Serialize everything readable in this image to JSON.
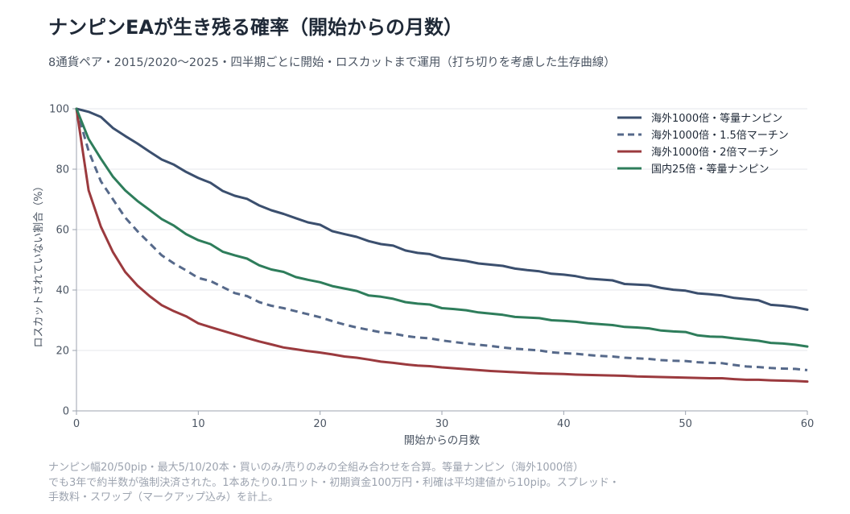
{
  "title": "ナンピンEAが生き残る確率（開始からの月数）",
  "subtitle": "8通貨ペア・2015/2020〜2025・四半期ごとに開始・ロスカットまで運用（打ち切りを考慮した生存曲線）",
  "notes": [
    "ナンピン幅20/50pip・最大5/10/20本・買いのみ/売りのみの全組み合わせを合算。等量ナンピン（海外1000倍）",
    "でも3年で約半数が強制決済された。1本あたり0.1ロット・初期資金100万円・利確は平均建値から10pip。スプレッド・",
    "手数料・スワップ（マークアップ込み）を計上。"
  ],
  "chart_data": {
    "type": "line",
    "xlabel": "開始からの月数",
    "ylabel": "ロスカットされていない割合（%）",
    "xlim": [
      0,
      60
    ],
    "ylim": [
      0,
      100
    ],
    "xticks": [
      0,
      10,
      20,
      30,
      40,
      50,
      60
    ],
    "yticks": [
      0,
      20,
      40,
      60,
      80,
      100
    ],
    "grid": "horizontal",
    "legend_position": "top-right",
    "series": [
      {
        "name": "海外1000倍・等量ナンピン",
        "color": "#3b4f6e",
        "dash": "solid",
        "x": [
          0,
          1,
          2,
          3,
          4,
          5,
          6,
          7,
          8,
          9,
          10,
          11,
          12,
          13,
          14,
          15,
          16,
          17,
          18,
          19,
          20,
          21,
          22,
          23,
          24,
          25,
          26,
          27,
          28,
          29,
          30,
          31,
          32,
          33,
          34,
          35,
          36,
          37,
          38,
          39,
          40,
          41,
          42,
          43,
          44,
          45,
          46,
          47,
          48,
          49,
          50,
          51,
          52,
          53,
          54,
          55,
          56,
          57,
          58,
          59,
          60
        ],
        "y": [
          100,
          99,
          97.3,
          93.6,
          91,
          88.5,
          85.8,
          83.2,
          81.5,
          79.1,
          77.1,
          75.5,
          72.8,
          71.2,
          70.2,
          68,
          66.4,
          65.2,
          63.8,
          62.4,
          61.6,
          59.5,
          58.5,
          57.6,
          56.2,
          55.2,
          54.7,
          53.1,
          52.3,
          51.9,
          50.6,
          50.1,
          49.6,
          48.8,
          48.4,
          48,
          47.1,
          46.6,
          46.2,
          45.4,
          45.1,
          44.6,
          43.8,
          43.5,
          43.2,
          42,
          41.8,
          41.6,
          40.7,
          40.1,
          39.8,
          38.9,
          38.6,
          38.2,
          37.4,
          37,
          36.6,
          35.1,
          34.8,
          34.3,
          33.5
        ]
      },
      {
        "name": "海外1000倍・1.5倍マーチン",
        "color": "#56698a",
        "dash": "dashed",
        "x": [
          0,
          1,
          2,
          3,
          4,
          5,
          6,
          7,
          8,
          9,
          10,
          11,
          12,
          13,
          14,
          15,
          16,
          17,
          18,
          19,
          20,
          21,
          22,
          23,
          24,
          25,
          26,
          27,
          28,
          29,
          30,
          31,
          32,
          33,
          34,
          35,
          36,
          37,
          38,
          39,
          40,
          41,
          42,
          43,
          44,
          45,
          46,
          47,
          48,
          49,
          50,
          51,
          52,
          53,
          54,
          55,
          56,
          57,
          58,
          59,
          60
        ],
        "y": [
          100,
          86,
          76,
          70,
          64,
          59.5,
          55.5,
          51.5,
          48.8,
          46.5,
          44,
          43,
          41,
          39,
          38,
          36,
          34.8,
          34,
          33,
          32,
          31,
          29.7,
          28.6,
          27.6,
          26.8,
          26,
          25.6,
          24.8,
          24.3,
          24,
          23.3,
          22.8,
          22.3,
          21.9,
          21.5,
          21,
          20.6,
          20.3,
          20,
          19.4,
          19.1,
          18.9,
          18.5,
          18.2,
          18,
          17.6,
          17.4,
          17.2,
          16.8,
          16.6,
          16.5,
          16.1,
          15.9,
          15.8,
          15.2,
          14.7,
          14.5,
          14.2,
          14,
          13.9,
          13.5
        ]
      },
      {
        "name": "海外1000倍・2倍マーチン",
        "color": "#9b3a3e",
        "dash": "solid",
        "x": [
          0,
          1,
          2,
          3,
          4,
          5,
          6,
          7,
          8,
          9,
          10,
          11,
          12,
          13,
          14,
          15,
          16,
          17,
          18,
          19,
          20,
          21,
          22,
          23,
          24,
          25,
          26,
          27,
          28,
          29,
          30,
          31,
          32,
          33,
          34,
          35,
          36,
          37,
          38,
          39,
          40,
          41,
          42,
          43,
          44,
          45,
          46,
          47,
          48,
          49,
          50,
          51,
          52,
          53,
          54,
          55,
          56,
          57,
          58,
          59,
          60
        ],
        "y": [
          100,
          73,
          61,
          52.5,
          46,
          41.5,
          38,
          35,
          33,
          31.3,
          29,
          27.7,
          26.5,
          25.3,
          24.1,
          23,
          22,
          21,
          20.4,
          19.8,
          19.3,
          18.7,
          18,
          17.6,
          17,
          16.3,
          15.9,
          15.4,
          15,
          14.8,
          14.4,
          14.1,
          13.8,
          13.5,
          13.2,
          13,
          12.8,
          12.6,
          12.4,
          12.3,
          12.2,
          12,
          11.9,
          11.8,
          11.7,
          11.6,
          11.4,
          11.3,
          11.2,
          11.1,
          11,
          10.9,
          10.8,
          10.8,
          10.5,
          10.3,
          10.3,
          10.1,
          10,
          9.9,
          9.7
        ]
      },
      {
        "name": "国内25倍・等量ナンピン",
        "color": "#2e7d5b",
        "dash": "solid",
        "x": [
          0,
          1,
          2,
          3,
          4,
          5,
          6,
          7,
          8,
          9,
          10,
          11,
          12,
          13,
          14,
          15,
          16,
          17,
          18,
          19,
          20,
          21,
          22,
          23,
          24,
          25,
          26,
          27,
          28,
          29,
          30,
          31,
          32,
          33,
          34,
          35,
          36,
          37,
          38,
          39,
          40,
          41,
          42,
          43,
          44,
          45,
          46,
          47,
          48,
          49,
          50,
          51,
          52,
          53,
          54,
          55,
          56,
          57,
          58,
          59,
          60
        ],
        "y": [
          100,
          90,
          83.5,
          77.5,
          73,
          69.5,
          66.5,
          63.5,
          61.3,
          58.5,
          56.5,
          55.2,
          52.7,
          51.5,
          50.4,
          48.2,
          46.8,
          46,
          44.3,
          43.4,
          42.6,
          41.3,
          40.5,
          39.7,
          38.2,
          37.8,
          37.1,
          36,
          35.5,
          35.2,
          34,
          33.7,
          33.3,
          32.6,
          32.2,
          31.8,
          31.1,
          30.9,
          30.7,
          30,
          29.8,
          29.5,
          29,
          28.7,
          28.4,
          27.8,
          27.6,
          27.3,
          26.6,
          26.3,
          26.1,
          25,
          24.6,
          24.5,
          24,
          23.6,
          23.2,
          22.5,
          22.3,
          21.9,
          21.3
        ]
      }
    ]
  }
}
